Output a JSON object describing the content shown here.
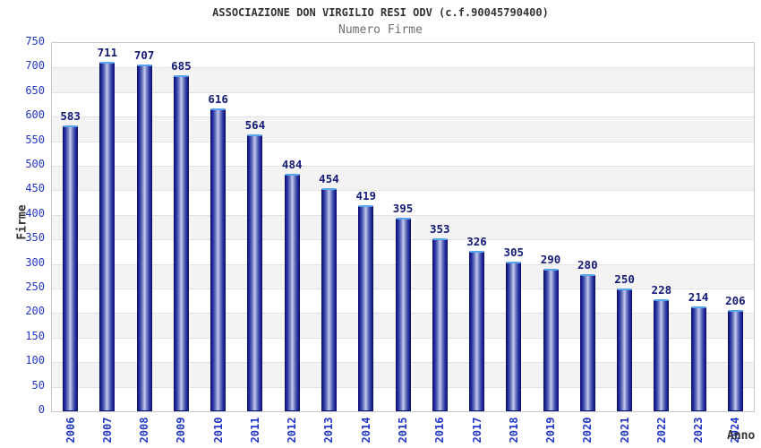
{
  "chart_data": {
    "type": "bar",
    "title": "ASSOCIAZIONE DON VIRGILIO RESI ODV (c.f.90045790400)",
    "subtitle": "Numero Firme",
    "xlabel": "Anno",
    "ylabel": "Firme",
    "categories": [
      "2006",
      "2007",
      "2008",
      "2009",
      "2010",
      "2011",
      "2012",
      "2013",
      "2014",
      "2015",
      "2016",
      "2017",
      "2018",
      "2019",
      "2020",
      "2021",
      "2022",
      "2023",
      "2024"
    ],
    "values": [
      583,
      711,
      707,
      685,
      616,
      564,
      484,
      454,
      419,
      395,
      353,
      326,
      305,
      290,
      280,
      250,
      228,
      214,
      206
    ],
    "ylim": [
      0,
      750
    ],
    "ytick_step": 50,
    "grid": true,
    "legend": "none",
    "colors": {
      "bar_edge": "#0c1070",
      "bar_dark": "#141a86",
      "bar_light_center": "#c8cdf0",
      "bar_top_cap": "#55a4ef",
      "tick_label": "#2236c8",
      "value_label": "#141a78",
      "band_gray": "#f3f3f3",
      "band_white": "#ffffff",
      "gridline": "#e2e2e2",
      "plot_border": "#c9c9c9",
      "title_color": "#333333",
      "subtitle_color": "#6e6e6e"
    }
  }
}
